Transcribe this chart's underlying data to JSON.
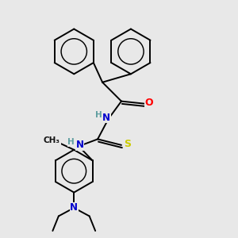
{
  "bg_color": "#e8e8e8",
  "atom_colors": {
    "C": "#000000",
    "N": "#0000cd",
    "O": "#ff0000",
    "S": "#cccc00",
    "H": "#5f9ea0"
  },
  "bond_color": "#000000",
  "bond_width": 1.4,
  "figsize": [
    3.0,
    3.0
  ],
  "dpi": 100,
  "xlim": [
    0,
    10
  ],
  "ylim": [
    0,
    10
  ]
}
